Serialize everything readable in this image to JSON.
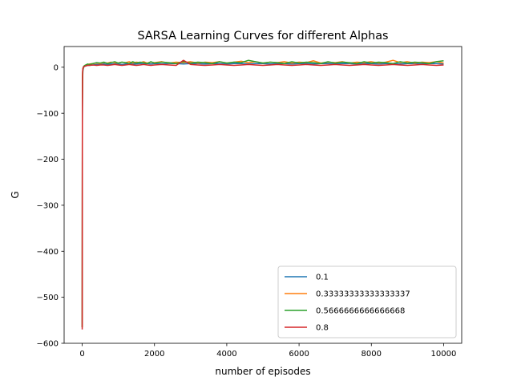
{
  "chart_data": {
    "type": "line",
    "title": "SARSA Learning Curves for different Alphas",
    "xlabel": "number of episodes",
    "ylabel": "G",
    "xlim": [
      -500,
      10500
    ],
    "ylim": [
      -600,
      45
    ],
    "xticks": [
      0,
      2000,
      4000,
      6000,
      8000,
      10000
    ],
    "xtick_labels": [
      "0",
      "2000",
      "4000",
      "6000",
      "8000",
      "10000"
    ],
    "yticks": [
      0,
      -100,
      -200,
      -300,
      -400,
      -500,
      -600
    ],
    "ytick_labels": [
      "0",
      "−100",
      "−200",
      "−300",
      "−400",
      "−500",
      "−600"
    ],
    "grid": false,
    "legend_position": "bottom-right",
    "series": [
      {
        "name": "0.1",
        "color": "#1f77b4",
        "x": [
          0,
          5,
          10,
          20,
          40,
          70,
          100,
          150,
          200,
          300,
          400,
          500,
          600,
          700,
          800,
          900,
          1000,
          1100,
          1200,
          1300,
          1400,
          1500,
          1600,
          1700,
          1800,
          1900,
          2000,
          2200,
          2400,
          2600,
          2800,
          3000,
          3200,
          3400,
          3600,
          3800,
          4000,
          4200,
          4400,
          4600,
          4800,
          5000,
          5200,
          5400,
          5600,
          5800,
          6000,
          6200,
          6400,
          6600,
          6800,
          7000,
          7200,
          7400,
          7600,
          7800,
          8000,
          8200,
          8400,
          8600,
          8800,
          9000,
          9200,
          9400,
          9600,
          9800,
          10000
        ],
        "y": [
          -565,
          -120,
          -30,
          -8,
          0,
          2,
          3,
          4,
          4,
          5,
          6,
          6,
          7,
          6,
          7,
          7,
          7,
          6,
          7,
          8,
          7,
          7,
          8,
          7,
          8,
          7,
          8,
          7,
          8,
          8,
          7,
          8,
          8,
          7,
          8,
          8,
          7,
          8,
          8,
          7,
          8,
          8,
          7,
          8,
          8,
          7,
          8,
          8,
          7,
          8,
          8,
          7,
          8,
          8,
          7,
          8,
          8,
          7,
          8,
          8,
          7,
          8,
          8,
          7,
          8,
          8,
          7
        ]
      },
      {
        "name": "0.33333333333333337",
        "color": "#ff7f0e",
        "x": [
          0,
          5,
          10,
          20,
          40,
          70,
          100,
          150,
          200,
          300,
          400,
          500,
          600,
          700,
          800,
          900,
          1000,
          1100,
          1200,
          1300,
          1400,
          1500,
          1600,
          1700,
          1800,
          1900,
          2000,
          2200,
          2400,
          2600,
          2800,
          3000,
          3200,
          3400,
          3600,
          3800,
          4000,
          4200,
          4400,
          4600,
          4800,
          5000,
          5200,
          5400,
          5600,
          5800,
          6000,
          6200,
          6400,
          6600,
          6800,
          7000,
          7200,
          7400,
          7600,
          7800,
          8000,
          8200,
          8400,
          8600,
          8800,
          9000,
          9200,
          9400,
          9600,
          9800,
          10000
        ],
        "y": [
          -565,
          -100,
          -20,
          -5,
          1,
          3,
          5,
          6,
          7,
          8,
          9,
          8,
          10,
          9,
          11,
          10,
          9,
          11,
          10,
          12,
          9,
          11,
          10,
          12,
          9,
          11,
          10,
          12,
          9,
          11,
          10,
          12,
          9,
          11,
          10,
          12,
          9,
          11,
          13,
          10,
          12,
          9,
          11,
          10,
          12,
          9,
          11,
          10,
          14,
          9,
          11,
          10,
          12,
          9,
          11,
          10,
          12,
          9,
          11,
          15,
          10,
          12,
          9,
          11,
          10,
          12,
          9
        ]
      },
      {
        "name": "0.5666666666666668",
        "color": "#2ca02c",
        "x": [
          0,
          5,
          10,
          20,
          40,
          70,
          100,
          150,
          200,
          300,
          400,
          500,
          600,
          700,
          800,
          900,
          1000,
          1100,
          1200,
          1300,
          1400,
          1500,
          1600,
          1700,
          1800,
          1900,
          2000,
          2200,
          2400,
          2600,
          2800,
          3000,
          3200,
          3400,
          3600,
          3800,
          4000,
          4200,
          4400,
          4600,
          4800,
          5000,
          5200,
          5400,
          5600,
          5800,
          6000,
          6200,
          6400,
          6600,
          6800,
          7000,
          7200,
          7400,
          7600,
          7800,
          8000,
          8200,
          8400,
          8600,
          8800,
          9000,
          9200,
          9400,
          9600,
          9800,
          10000
        ],
        "y": [
          -565,
          -90,
          -15,
          -3,
          2,
          4,
          5,
          7,
          6,
          8,
          10,
          9,
          11,
          8,
          10,
          12,
          9,
          11,
          10,
          8,
          12,
          9,
          11,
          10,
          8,
          12,
          9,
          11,
          10,
          8,
          12,
          9,
          11,
          10,
          8,
          12,
          9,
          11,
          10,
          15,
          12,
          9,
          11,
          10,
          8,
          12,
          9,
          11,
          10,
          8,
          12,
          9,
          11,
          10,
          8,
          12,
          9,
          11,
          10,
          8,
          12,
          9,
          11,
          10,
          8,
          12,
          14
        ]
      },
      {
        "name": "0.8",
        "color": "#d62728",
        "x": [
          0,
          5,
          10,
          20,
          40,
          70,
          100,
          150,
          200,
          300,
          400,
          500,
          600,
          700,
          800,
          900,
          1000,
          1100,
          1200,
          1300,
          1400,
          1500,
          1600,
          1700,
          1800,
          1900,
          2000,
          2200,
          2400,
          2600,
          2800,
          3000,
          3200,
          3400,
          3600,
          3800,
          4000,
          4200,
          4400,
          4600,
          4800,
          5000,
          5200,
          5400,
          5600,
          5800,
          6000,
          6200,
          6400,
          6600,
          6800,
          7000,
          7200,
          7400,
          7600,
          7800,
          8000,
          8200,
          8400,
          8600,
          8800,
          9000,
          9200,
          9400,
          9600,
          9800,
          10000
        ],
        "y": [
          -570,
          -80,
          -10,
          -2,
          1,
          2,
          3,
          4,
          4,
          5,
          4,
          5,
          5,
          4,
          5,
          6,
          5,
          4,
          5,
          6,
          5,
          4,
          5,
          6,
          5,
          4,
          5,
          6,
          5,
          4,
          15,
          6,
          5,
          4,
          5,
          6,
          5,
          4,
          5,
          6,
          5,
          4,
          5,
          6,
          5,
          4,
          5,
          6,
          5,
          4,
          5,
          6,
          5,
          4,
          5,
          6,
          5,
          4,
          5,
          6,
          5,
          4,
          5,
          6,
          5,
          4,
          5
        ]
      }
    ]
  }
}
